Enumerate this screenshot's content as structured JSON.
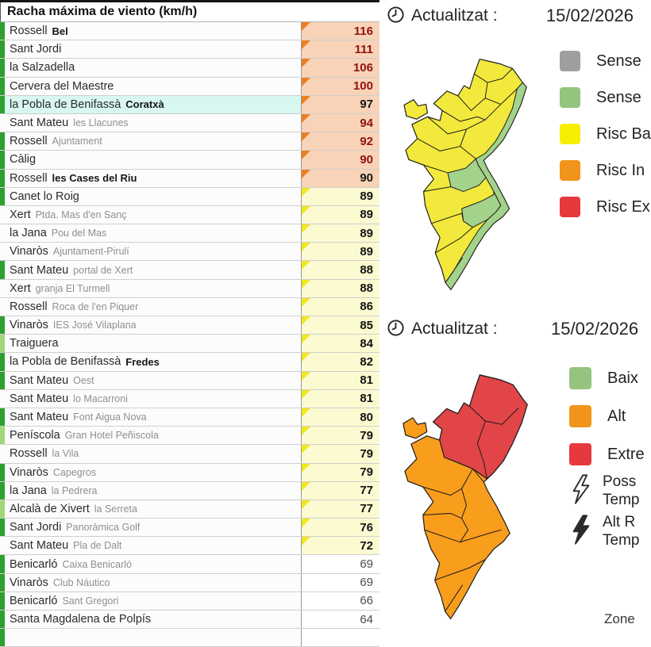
{
  "colors": {
    "orange_cell_bg": "#f8d3b7",
    "orange_triangle": "#ee7e1e",
    "yellow_cell_bg": "#fbfad1",
    "yellow_triangle": "#f1e81d",
    "dark_red_text": "#8f1212",
    "bar_dark_green": "#2ea02e",
    "bar_light_green": "#9fd878",
    "highlight_cyan": "#d7f7f0",
    "legend_gray": "#9e9e9e",
    "legend_green": "#94c47e",
    "legend_yellow": "#f6ee00",
    "legend_orange": "#f0941c",
    "legend_red": "#e6393d",
    "map_yellow": "#f2e93c",
    "map_green": "#a3d28b",
    "map_orange": "#f99d1c",
    "map_red": "#e24547"
  },
  "table": {
    "title": "Racha máxima de viento (km/h)",
    "rows": [
      {
        "name": "Rossell",
        "sub": "Bel",
        "sub_bold": true,
        "value": "116",
        "band": "orange",
        "vcolor": "darkred",
        "bar": "dark",
        "highlight": false
      },
      {
        "name": "Sant Jordi",
        "sub": "",
        "sub_bold": false,
        "value": "111",
        "band": "orange",
        "vcolor": "darkred",
        "bar": "dark",
        "highlight": false
      },
      {
        "name": "la Salzadella",
        "sub": "",
        "sub_bold": false,
        "value": "106",
        "band": "orange",
        "vcolor": "darkred",
        "bar": "dark",
        "highlight": false
      },
      {
        "name": "Cervera del Maestre",
        "sub": "",
        "sub_bold": false,
        "value": "100",
        "band": "orange",
        "vcolor": "darkred",
        "bar": "dark",
        "highlight": false
      },
      {
        "name": "la Pobla de Benifassà",
        "sub": "Coratxà",
        "sub_bold": true,
        "value": "97",
        "band": "orange",
        "vcolor": "black",
        "bar": "dark",
        "highlight": true
      },
      {
        "name": "Sant Mateu",
        "sub": "les Llacunes",
        "sub_bold": false,
        "value": "94",
        "band": "orange",
        "vcolor": "darkred",
        "bar": "none",
        "highlight": false
      },
      {
        "name": "Rossell",
        "sub": "Ajuntament",
        "sub_bold": false,
        "value": "92",
        "band": "orange",
        "vcolor": "darkred",
        "bar": "dark",
        "highlight": false
      },
      {
        "name": "Càlig",
        "sub": "",
        "sub_bold": false,
        "value": "90",
        "band": "orange",
        "vcolor": "darkred",
        "bar": "dark",
        "highlight": false
      },
      {
        "name": "Rossell",
        "sub": "les Cases del Riu",
        "sub_bold": true,
        "value": "90",
        "band": "orange",
        "vcolor": "black",
        "bar": "dark",
        "highlight": false
      },
      {
        "name": "Canet lo Roig",
        "sub": "",
        "sub_bold": false,
        "value": "89",
        "band": "yellow",
        "vcolor": "black",
        "bar": "dark",
        "highlight": false
      },
      {
        "name": "Xert",
        "sub": "Ptda. Mas d'en Sanç",
        "sub_bold": false,
        "value": "89",
        "band": "yellow",
        "vcolor": "black",
        "bar": "none",
        "highlight": false
      },
      {
        "name": "la Jana",
        "sub": "Pou del Mas",
        "sub_bold": false,
        "value": "89",
        "band": "yellow",
        "vcolor": "black",
        "bar": "none",
        "highlight": false
      },
      {
        "name": "Vinaròs",
        "sub": "Ajuntament-Pirulí",
        "sub_bold": false,
        "value": "89",
        "band": "yellow",
        "vcolor": "black",
        "bar": "none",
        "highlight": false
      },
      {
        "name": "Sant Mateu",
        "sub": "portal de Xert",
        "sub_bold": false,
        "value": "88",
        "band": "yellow",
        "vcolor": "black",
        "bar": "dark",
        "highlight": false
      },
      {
        "name": "Xert",
        "sub": "granja El Turmell",
        "sub_bold": false,
        "value": "88",
        "band": "yellow",
        "vcolor": "black",
        "bar": "none",
        "highlight": false
      },
      {
        "name": "Rossell",
        "sub": "Roca de l'en Piquer",
        "sub_bold": false,
        "value": "86",
        "band": "yellow",
        "vcolor": "black",
        "bar": "none",
        "highlight": false
      },
      {
        "name": "Vinaròs",
        "sub": "IES José Vilaplana",
        "sub_bold": false,
        "value": "85",
        "band": "yellow",
        "vcolor": "black",
        "bar": "dark",
        "highlight": false
      },
      {
        "name": "Traiguera",
        "sub": "",
        "sub_bold": false,
        "value": "84",
        "band": "yellow",
        "vcolor": "black",
        "bar": "light",
        "highlight": false
      },
      {
        "name": "la Pobla de Benifassà",
        "sub": "Fredes",
        "sub_bold": true,
        "value": "82",
        "band": "yellow",
        "vcolor": "black",
        "bar": "dark",
        "highlight": false
      },
      {
        "name": "Sant Mateu",
        "sub": "Oest",
        "sub_bold": false,
        "value": "81",
        "band": "yellow",
        "vcolor": "black",
        "bar": "dark",
        "highlight": false
      },
      {
        "name": "Sant Mateu",
        "sub": "lo Macarroni",
        "sub_bold": false,
        "value": "81",
        "band": "yellow",
        "vcolor": "black",
        "bar": "none",
        "highlight": false
      },
      {
        "name": "Sant Mateu",
        "sub": "Font Aigua Nova",
        "sub_bold": false,
        "value": "80",
        "band": "yellow",
        "vcolor": "black",
        "bar": "dark",
        "highlight": false
      },
      {
        "name": "Peníscola",
        "sub": "Gran Hotel Peñiscola",
        "sub_bold": false,
        "value": "79",
        "band": "yellow",
        "vcolor": "black",
        "bar": "light",
        "highlight": false
      },
      {
        "name": "Rossell",
        "sub": "la Vila",
        "sub_bold": false,
        "value": "79",
        "band": "yellow",
        "vcolor": "black",
        "bar": "none",
        "highlight": false
      },
      {
        "name": "Vinaròs",
        "sub": "Capegros",
        "sub_bold": false,
        "value": "79",
        "band": "yellow",
        "vcolor": "black",
        "bar": "dark",
        "highlight": false
      },
      {
        "name": "la Jana",
        "sub": "la Pedrera",
        "sub_bold": false,
        "value": "77",
        "band": "yellow",
        "vcolor": "black",
        "bar": "dark",
        "highlight": false
      },
      {
        "name": "Alcalà de Xivert",
        "sub": "la Serreta",
        "sub_bold": false,
        "value": "77",
        "band": "yellow",
        "vcolor": "black",
        "bar": "light",
        "highlight": false
      },
      {
        "name": "Sant Jordi",
        "sub": "Panoràmica Golf",
        "sub_bold": false,
        "value": "76",
        "band": "yellow",
        "vcolor": "black",
        "bar": "dark",
        "highlight": false
      },
      {
        "name": "Sant Mateu",
        "sub": "Pla de Dalt",
        "sub_bold": false,
        "value": "72",
        "band": "yellow",
        "vcolor": "black",
        "bar": "none",
        "highlight": false
      },
      {
        "name": "Benicarló",
        "sub": "Caixa Benicarló",
        "sub_bold": false,
        "value": "69",
        "band": "white",
        "vcolor": "gray",
        "bar": "dark",
        "highlight": false
      },
      {
        "name": "Vinaròs",
        "sub": "Club Náutico",
        "sub_bold": false,
        "value": "69",
        "band": "white",
        "vcolor": "gray",
        "bar": "dark",
        "highlight": false
      },
      {
        "name": "Benicarló",
        "sub": "Sant Gregori",
        "sub_bold": false,
        "value": "66",
        "band": "white",
        "vcolor": "gray",
        "bar": "dark",
        "highlight": false
      },
      {
        "name": "Santa Magdalena de Polpís",
        "sub": "",
        "sub_bold": false,
        "value": "64",
        "band": "white",
        "vcolor": "gray",
        "bar": "dark",
        "highlight": false
      },
      {
        "name": "",
        "sub": "",
        "sub_bold": false,
        "value": "",
        "band": "white",
        "vcolor": "gray",
        "bar": "dark",
        "highlight": false
      }
    ]
  },
  "panels": [
    {
      "updated_label": "Actualitzat :",
      "updated_value": "15/02/2026",
      "legend": [
        {
          "color_key": "legend_gray",
          "label": "Sense"
        },
        {
          "color_key": "legend_green",
          "label": "Sense"
        },
        {
          "color_key": "legend_yellow",
          "label": "Risc Ba"
        },
        {
          "color_key": "legend_orange",
          "label": "Risc In"
        },
        {
          "color_key": "legend_red",
          "label": "Risc Ex"
        }
      ]
    },
    {
      "updated_label": "Actualitzat :",
      "updated_value": "15/02/2026",
      "legend": [
        {
          "color_key": "legend_green",
          "label": "Baix"
        },
        {
          "color_key": "legend_orange",
          "label": "Alt"
        },
        {
          "color_key": "legend_red",
          "label": "Extre"
        }
      ],
      "storm": [
        {
          "icon": "lightning-outline-icon",
          "line1": "Poss",
          "line2": "Temp"
        },
        {
          "icon": "lightning-filled-icon",
          "line1": "Alt R",
          "line2": "Temp"
        }
      ],
      "footer": "Zone"
    }
  ]
}
